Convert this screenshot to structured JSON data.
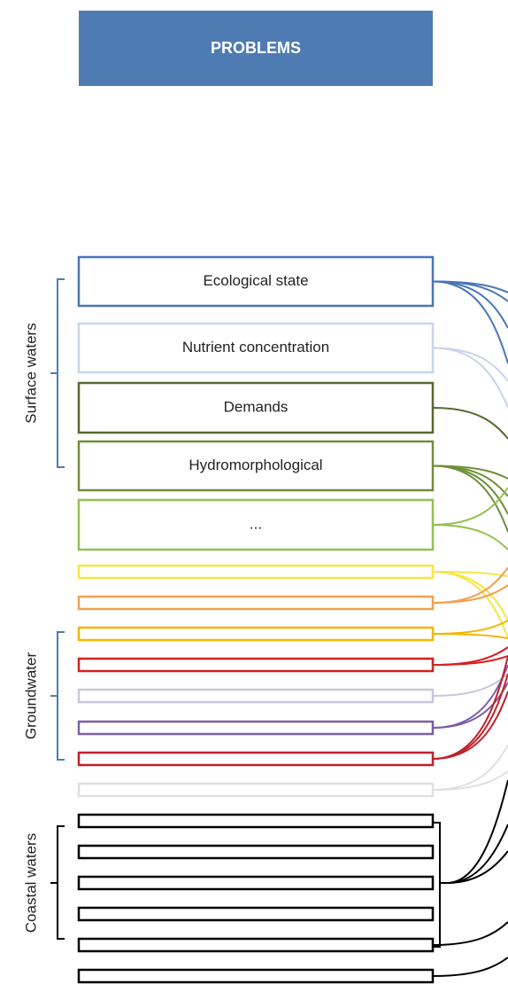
{
  "header": {
    "title": "PROBLEMS"
  },
  "boxes": [
    "Ecological state",
    "Nutrient concentration",
    "Demands",
    "Hydromorphological",
    "..."
  ],
  "groups": [
    "Surface waters",
    "Groundwater",
    "Coastal waters"
  ]
}
